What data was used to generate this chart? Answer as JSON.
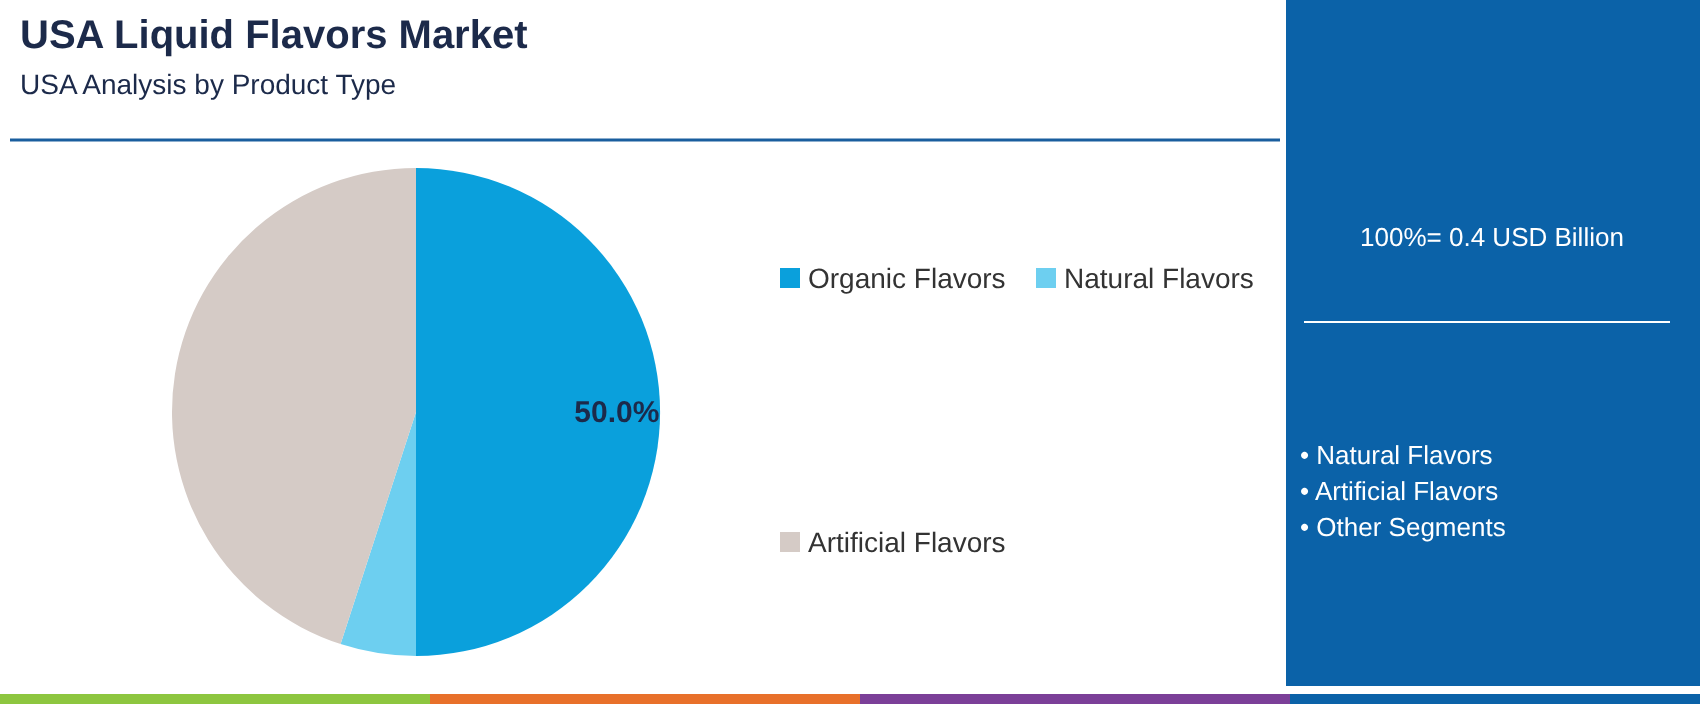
{
  "chart_data": {
    "type": "pie",
    "title": "USA Liquid Flavors Market",
    "subtitle": "USA Analysis by Product Type",
    "categories": [
      "Organic Flavors",
      "Natural Flavors",
      "Artificial Flavors"
    ],
    "values": [
      50,
      5,
      45
    ],
    "colors": [
      "#0aa0dc",
      "#6dcff0",
      "#d5cbc6"
    ],
    "value_labels": [
      "50.0%",
      null,
      null
    ],
    "legend": "right",
    "annotations": [
      "100%= 0.4 USD Billion",
      "• Natural Flavors",
      "• Artificial Flavors",
      "• Other Segments"
    ]
  }
}
